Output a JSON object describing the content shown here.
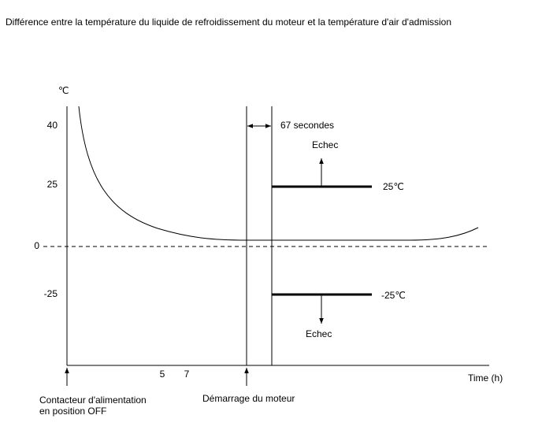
{
  "title": "Différence entre la température du liquide de refroidissement du moteur et la température d'air d'admission",
  "y_axis": {
    "unit": "℃",
    "labels": [
      "40",
      "25",
      "0",
      "-25"
    ]
  },
  "x_axis": {
    "label": "Time (h)",
    "labels": [
      "5",
      "7"
    ]
  },
  "interval_label": "67 secondes",
  "thresholds": [
    {
      "label": "25℃",
      "result": "Echec"
    },
    {
      "label": "-25℃",
      "result": "Echec"
    }
  ],
  "events": [
    {
      "lines": [
        "Contacteur d'alimentation",
        "en position OFF"
      ]
    },
    {
      "lines": [
        "Démarrage du moteur"
      ]
    }
  ]
}
